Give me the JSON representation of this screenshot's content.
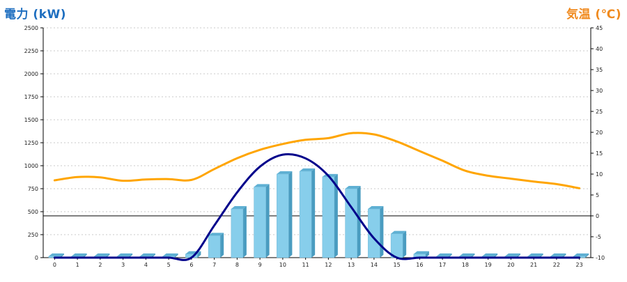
{
  "chart_data": {
    "type": "bar",
    "title": "",
    "left_axis_title": "電力 (kW)",
    "right_axis_title": "気温 (℃)",
    "categories": [
      "0",
      "1",
      "2",
      "3",
      "4",
      "5",
      "6",
      "7",
      "8",
      "9",
      "10",
      "11",
      "12",
      "13",
      "14",
      "15",
      "16",
      "17",
      "18",
      "19",
      "20",
      "21",
      "22",
      "23"
    ],
    "ylim_left": [
      0,
      2500
    ],
    "yticks_left": [
      "0",
      "250",
      "500",
      "750",
      "1000",
      "1250",
      "1500",
      "1750",
      "2000",
      "2250",
      "2500"
    ],
    "ylim_right": [
      -10,
      45
    ],
    "yticks_right": [
      "-10",
      "-5",
      "0",
      "5",
      "10",
      "15",
      "20",
      "25",
      "30",
      "35",
      "40",
      "45"
    ],
    "grid": true,
    "reference_line_right": 0,
    "series": [
      {
        "kind": "bar",
        "axis": "left",
        "values": [
          15,
          15,
          15,
          15,
          15,
          15,
          40,
          240,
          530,
          770,
          910,
          940,
          880,
          750,
          530,
          260,
          40,
          15,
          15,
          15,
          15,
          15,
          15,
          15
        ],
        "color": "#87ceeb"
      },
      {
        "kind": "line",
        "axis": "left",
        "values": [
          0,
          0,
          0,
          0,
          0,
          0,
          0,
          350,
          710,
          990,
          1120,
          1080,
          890,
          550,
          210,
          0,
          0,
          0,
          0,
          0,
          0,
          0,
          0,
          0
        ],
        "color": "#00008b"
      },
      {
        "kind": "line",
        "axis": "right",
        "values": [
          8.5,
          9.3,
          9.2,
          8.4,
          8.7,
          8.8,
          8.6,
          11.2,
          13.8,
          15.8,
          17.2,
          18.2,
          18.6,
          19.8,
          19.5,
          17.8,
          15.5,
          13.2,
          10.8,
          9.6,
          8.9,
          8.2,
          7.6,
          6.6
        ],
        "color": "#ffa500"
      }
    ]
  }
}
